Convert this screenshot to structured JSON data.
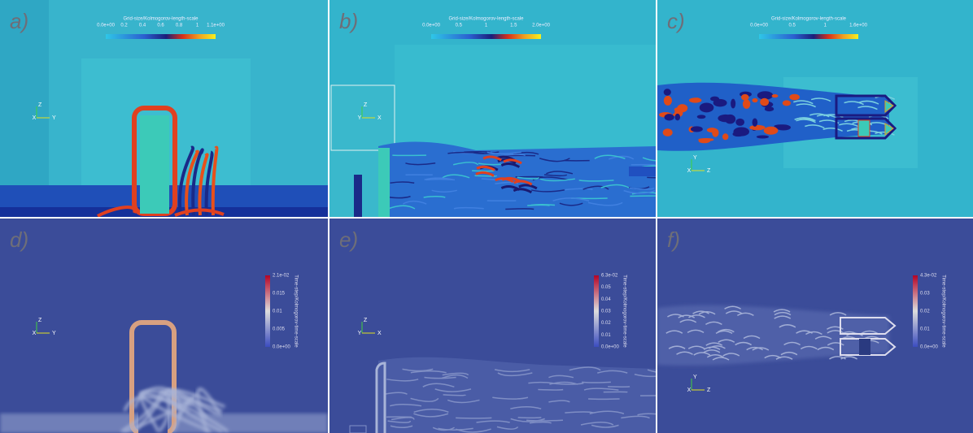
{
  "panels": [
    {
      "label": "a)",
      "colorbar": {
        "title": "Grid-size/Kolmogorov-length-scale",
        "ticks": [
          "0.0e+00",
          "0.2",
          "0.4",
          "0.6",
          "0.8",
          "1",
          "1.1e+00"
        ]
      },
      "triad": [
        "Z",
        "X",
        "Y"
      ]
    },
    {
      "label": "b)",
      "colorbar": {
        "title": "Grid-size/Kolmogorov-length-scale",
        "ticks": [
          "0.0e+00",
          "0.5",
          "1",
          "1.5",
          "2.0e+00"
        ]
      },
      "triad": [
        "Z",
        "Y",
        "X"
      ]
    },
    {
      "label": "c)",
      "colorbar": {
        "title": "Grid-size/Kolmogorov-length-scale",
        "ticks": [
          "0.0e+00",
          "0.5",
          "1",
          "1.6e+00"
        ]
      },
      "triad": [
        "Y",
        "X",
        "Z"
      ]
    },
    {
      "label": "d)",
      "colorbar": {
        "title": "Time-step/Kolmogorov-time-scale",
        "ticks": [
          "2.1e-02",
          "0.015",
          "0.01",
          "0.005",
          "0.0e+00"
        ]
      },
      "triad": [
        "Z",
        "X",
        "Y"
      ]
    },
    {
      "label": "e)",
      "colorbar": {
        "title": "Time-step/Kolmogorov-time-scale",
        "ticks": [
          "6.3e-02",
          "0.05",
          "0.04",
          "0.03",
          "0.02",
          "0.01",
          "0.0e+00"
        ]
      },
      "triad": [
        "Z",
        "Y",
        "X"
      ]
    },
    {
      "label": "f)",
      "colorbar": {
        "title": "Time-step/Kolmogorov-time-scale",
        "ticks": [
          "4.3e-02",
          "0.03",
          "0.02",
          "0.01",
          "0.0e+00"
        ]
      },
      "triad": [
        "Y",
        "X",
        "Z"
      ]
    }
  ]
}
